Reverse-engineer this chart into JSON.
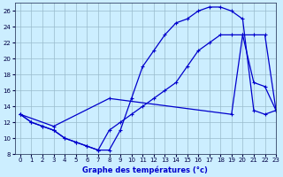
{
  "xlabel": "Graphe des températures (°c)",
  "xlim": [
    -0.5,
    23
  ],
  "ylim": [
    8,
    27
  ],
  "yticks": [
    8,
    10,
    12,
    14,
    16,
    18,
    20,
    22,
    24,
    26
  ],
  "xticks": [
    0,
    1,
    2,
    3,
    4,
    5,
    6,
    7,
    8,
    9,
    10,
    11,
    12,
    13,
    14,
    15,
    16,
    17,
    18,
    19,
    20,
    21,
    22,
    23
  ],
  "bg_color": "#cceeff",
  "line_color": "#0000cc",
  "grid_color": "#99bbcc",
  "line1_x": [
    0,
    1,
    2,
    3,
    4,
    5,
    6,
    7,
    8,
    9,
    10,
    11,
    12,
    13,
    14,
    15,
    16,
    17,
    18,
    19,
    20,
    21,
    22,
    23
  ],
  "line1_y": [
    13,
    12,
    11.5,
    11,
    10,
    9.5,
    9,
    8.5,
    8.5,
    11,
    15,
    19,
    21,
    23,
    24.5,
    25,
    26,
    26.5,
    26.5,
    26,
    25,
    13.5,
    13,
    13.5
  ],
  "line2_x": [
    0,
    1,
    2,
    3,
    4,
    5,
    6,
    7,
    8,
    9,
    10,
    11,
    12,
    13,
    14,
    15,
    16,
    17,
    18,
    19,
    20,
    21,
    22,
    23
  ],
  "line2_y": [
    13,
    12,
    11.5,
    11,
    10,
    9.5,
    9,
    8.5,
    11,
    12,
    13,
    14,
    15,
    16,
    17,
    19,
    21,
    22,
    23,
    23,
    23,
    23,
    23,
    13.5
  ],
  "line3_x": [
    0,
    3,
    8,
    19,
    20,
    21,
    22,
    23
  ],
  "line3_y": [
    13,
    11.5,
    15,
    13,
    23,
    17,
    16.5,
    13.5
  ]
}
